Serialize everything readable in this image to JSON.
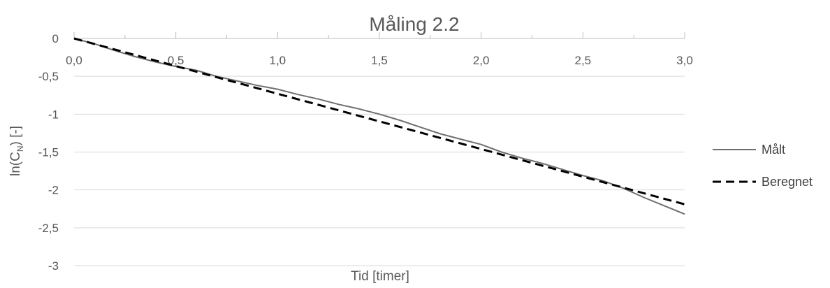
{
  "chart_data": {
    "type": "line",
    "title": "Måling 2.2",
    "xlabel": "Tid [timer]",
    "ylabel_main": "ln(C",
    "ylabel_sub": "N",
    "ylabel_tail": ") [-]",
    "xlim": [
      0,
      3
    ],
    "ylim": [
      -3,
      0
    ],
    "x_ticks": [
      0,
      0.5,
      1,
      1.5,
      2,
      2.5,
      3
    ],
    "x_tick_labels": [
      "0,0",
      "0,5",
      "1,0",
      "1,5",
      "2,0",
      "2,5",
      "3,0"
    ],
    "y_ticks": [
      0,
      -0.5,
      -1,
      -1.5,
      -2,
      -2.5,
      -3
    ],
    "y_tick_labels": [
      "0",
      "-0,5",
      "-1",
      "-1,5",
      "-2",
      "-2,5",
      "-3"
    ],
    "grid": true,
    "legend_position": "right",
    "series": [
      {
        "name": "Målt",
        "color": "#6f6f6f",
        "style": "solid",
        "x": [
          0,
          0.1,
          0.2,
          0.3,
          0.4,
          0.5,
          0.6,
          0.7,
          0.8,
          0.9,
          1.0,
          1.1,
          1.2,
          1.3,
          1.4,
          1.5,
          1.6,
          1.7,
          1.8,
          1.9,
          2.0,
          2.1,
          2.2,
          2.3,
          2.4,
          2.5,
          2.6,
          2.7,
          2.8,
          2.9,
          3.0
        ],
        "y": [
          0,
          -0.07,
          -0.16,
          -0.24,
          -0.31,
          -0.37,
          -0.42,
          -0.5,
          -0.56,
          -0.62,
          -0.67,
          -0.74,
          -0.8,
          -0.87,
          -0.93,
          -1.0,
          -1.08,
          -1.17,
          -1.26,
          -1.33,
          -1.4,
          -1.5,
          -1.58,
          -1.65,
          -1.73,
          -1.81,
          -1.88,
          -1.98,
          -2.1,
          -2.21,
          -2.32
        ]
      },
      {
        "name": "Beregnet",
        "color": "#000000",
        "style": "dashed",
        "x": [
          0,
          3.0
        ],
        "y": [
          0,
          -2.19
        ]
      }
    ]
  }
}
